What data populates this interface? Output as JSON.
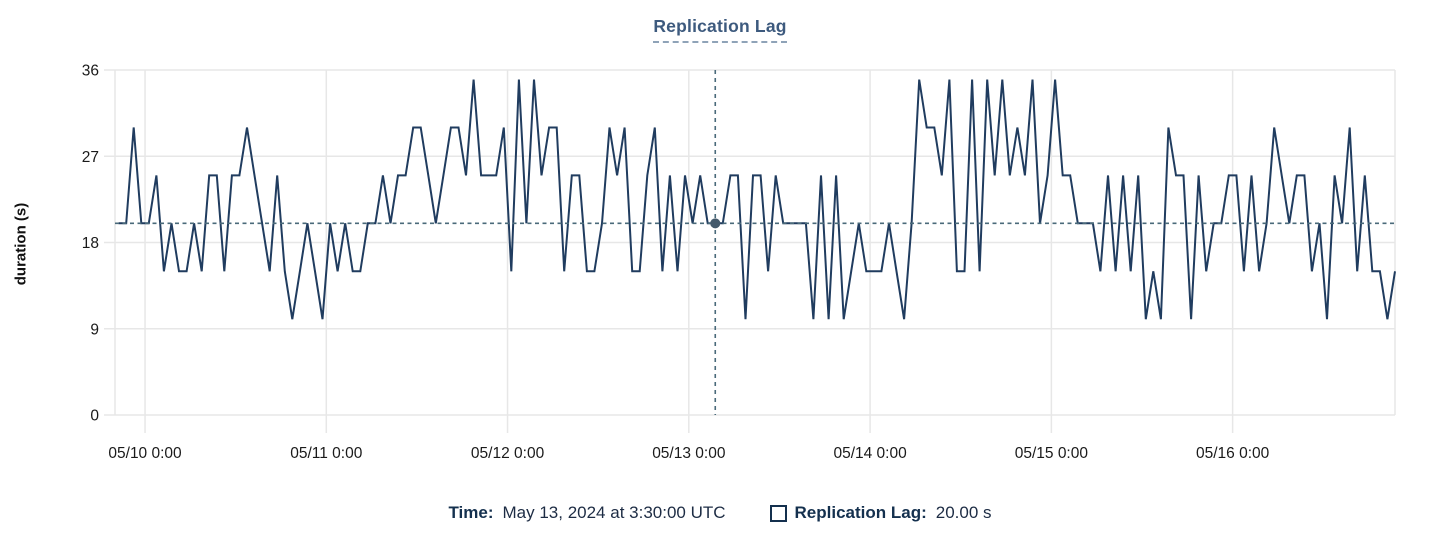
{
  "title": {
    "text": "Replication Lag"
  },
  "y_axis": {
    "label": "duration (s)"
  },
  "legend": {
    "time_label": "Time:",
    "time_value": "May 13, 2024 at 3:30:00 UTC",
    "checkbox_icon": "square-outline",
    "series_label": "Replication Lag:",
    "series_value": "20.00 s"
  },
  "colors": {
    "series": "#203c5f",
    "reference": "#4a6a7a",
    "marker": "#44596b",
    "title": "#3d5a7e",
    "title_underline": "#8fa3b8",
    "legend_text": "#14304e",
    "axis_text": "#1a1a1a",
    "grid": "#e7e7e7"
  },
  "chart_data": {
    "type": "line",
    "title": "Replication Lag",
    "xlabel": "",
    "ylabel": "duration (s)",
    "ylim": [
      0,
      36
    ],
    "y_ticks": [
      0,
      9,
      18,
      27,
      36
    ],
    "grid": true,
    "legend_position": "bottom",
    "x_tick_labels": [
      "05/10 0:00",
      "05/11 0:00",
      "05/12 0:00",
      "05/13 0:00",
      "05/14 0:00",
      "05/15 0:00",
      "05/16 0:00"
    ],
    "x_tick_indices": [
      3.5,
      27.5,
      51.5,
      75.5,
      99.5,
      123.5,
      147.5
    ],
    "sample_interval_minutes": 60,
    "series": [
      {
        "name": "Replication Lag",
        "unit": "s",
        "values": [
          20,
          20,
          30,
          20,
          20,
          25,
          15,
          20,
          15,
          15,
          20,
          15,
          25,
          25,
          15,
          25,
          25,
          30,
          25,
          20,
          15,
          25,
          15,
          10,
          15,
          20,
          15,
          10,
          20,
          15,
          20,
          15,
          15,
          20,
          20,
          25,
          20,
          25,
          25,
          30,
          30,
          25,
          20,
          25,
          30,
          30,
          25,
          35,
          25,
          25,
          25,
          30,
          15,
          35,
          20,
          35,
          25,
          30,
          30,
          15,
          25,
          25,
          15,
          15,
          20,
          30,
          25,
          30,
          15,
          15,
          25,
          30,
          15,
          25,
          15,
          25,
          20,
          25,
          20,
          20,
          20,
          25,
          25,
          10,
          25,
          25,
          15,
          25,
          20,
          20,
          20,
          20,
          10,
          25,
          10,
          25,
          10,
          15,
          20,
          15,
          15,
          15,
          20,
          15,
          10,
          20,
          35,
          30,
          30,
          25,
          35,
          15,
          15,
          35,
          15,
          35,
          25,
          35,
          25,
          30,
          25,
          35,
          20,
          25,
          35,
          25,
          25,
          20,
          20,
          20,
          15,
          25,
          15,
          25,
          15,
          25,
          10,
          15,
          10,
          30,
          25,
          25,
          10,
          25,
          15,
          20,
          20,
          25,
          25,
          15,
          25,
          15,
          20,
          30,
          25,
          20,
          25,
          25,
          15,
          20,
          10,
          25,
          20,
          30,
          15,
          25,
          15,
          15,
          10,
          15
        ]
      }
    ],
    "crosshair": {
      "x_index": 79,
      "y_value": 20,
      "time": "May 13, 2024 at 3:30:00 UTC",
      "value_label": "20.00 s"
    },
    "reference_line_y": 20
  }
}
